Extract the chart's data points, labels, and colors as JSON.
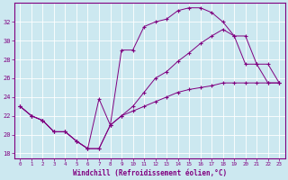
{
  "xlabel": "Windchill (Refroidissement éolien,°C)",
  "bg_color": "#cce8f0",
  "line_color": "#800080",
  "grid_color": "#ffffff",
  "xlim": [
    -0.5,
    23.5
  ],
  "ylim": [
    17.5,
    34.0
  ],
  "yticks": [
    18,
    20,
    22,
    24,
    26,
    28,
    30,
    32
  ],
  "xticks": [
    0,
    1,
    2,
    3,
    4,
    5,
    6,
    7,
    8,
    9,
    10,
    11,
    12,
    13,
    14,
    15,
    16,
    17,
    18,
    19,
    20,
    21,
    22,
    23
  ],
  "curve_top_x": [
    0,
    1,
    2,
    3,
    4,
    5,
    6,
    7,
    8,
    9,
    10,
    11,
    12,
    13,
    14,
    15,
    16,
    17,
    18,
    19,
    20,
    21,
    22,
    23
  ],
  "curve_top_y": [
    23.0,
    22.0,
    21.5,
    20.3,
    20.3,
    19.3,
    18.5,
    23.8,
    21.0,
    29.0,
    29.0,
    31.5,
    32.0,
    32.3,
    33.2,
    33.5,
    33.5,
    33.0,
    32.0,
    30.5,
    27.5,
    27.5,
    25.5,
    25.5
  ],
  "curve_mid_x": [
    0,
    1,
    2,
    3,
    4,
    5,
    6,
    7,
    8,
    9,
    10,
    11,
    12,
    13,
    14,
    15,
    16,
    17,
    18,
    19,
    20,
    21,
    22,
    23
  ],
  "curve_mid_y": [
    23.0,
    22.0,
    21.5,
    20.3,
    20.3,
    19.3,
    18.5,
    18.5,
    21.0,
    22.0,
    23.0,
    24.5,
    26.0,
    26.7,
    27.8,
    28.7,
    29.7,
    30.5,
    31.2,
    30.5,
    30.5,
    27.5,
    27.5,
    25.5
  ],
  "curve_bot_x": [
    0,
    1,
    2,
    3,
    4,
    5,
    6,
    7,
    8,
    9,
    10,
    11,
    12,
    13,
    14,
    15,
    16,
    17,
    18,
    19,
    20,
    21,
    22,
    23
  ],
  "curve_bot_y": [
    23.0,
    22.0,
    21.5,
    20.3,
    20.3,
    19.3,
    18.5,
    18.5,
    21.0,
    22.0,
    22.5,
    23.0,
    23.5,
    24.0,
    24.5,
    24.8,
    25.0,
    25.2,
    25.5,
    25.5,
    25.5,
    25.5,
    25.5,
    25.5
  ]
}
